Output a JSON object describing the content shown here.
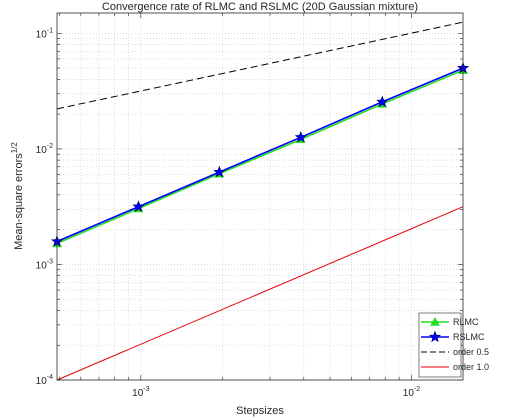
{
  "chart_data": {
    "type": "line",
    "title": "Convergence rate of RLMC and RSLMC (20D Gaussian mixture)",
    "xlabel": "Stepsizes",
    "ylabel_main": "Mean-square errors",
    "ylabel_sup": "1/2",
    "xscale": "log",
    "yscale": "log",
    "xlim": [
      0.00049,
      0.0155
    ],
    "ylim": [
      0.0001,
      0.15
    ],
    "grid": true,
    "legend_position": "bottom-right",
    "x_ticks": [
      {
        "value": 0.001,
        "base": "10",
        "exp": "-3"
      },
      {
        "value": 0.01,
        "base": "10",
        "exp": "-2"
      }
    ],
    "y_ticks": [
      {
        "value": 0.0001,
        "base": "10",
        "exp": "-4"
      },
      {
        "value": 0.001,
        "base": "10",
        "exp": "-3"
      },
      {
        "value": 0.01,
        "base": "10",
        "exp": "-2"
      },
      {
        "value": 0.1,
        "base": "10",
        "exp": "-1"
      }
    ],
    "series": [
      {
        "name": "RLMC",
        "color": "#22dd22",
        "marker": "triangle",
        "x": [
          0.00049,
          0.00098,
          0.00195,
          0.0039,
          0.0078,
          0.0155
        ],
        "y": [
          0.00152,
          0.00305,
          0.0061,
          0.0121,
          0.0245,
          0.048
        ]
      },
      {
        "name": "RSLMC",
        "color": "#0000ff",
        "marker": "star",
        "x": [
          0.00049,
          0.00098,
          0.00195,
          0.0039,
          0.0078,
          0.0155
        ],
        "y": [
          0.00158,
          0.00316,
          0.0063,
          0.0126,
          0.0255,
          0.05
        ]
      },
      {
        "name": "order 0.5",
        "color": "#000000",
        "style": "dashed",
        "x": [
          0.00049,
          0.0155
        ],
        "y": [
          0.0222,
          0.125
        ]
      },
      {
        "name": "order 1.0",
        "color": "#e8000b",
        "style": "solid",
        "x": [
          0.00049,
          0.0155
        ],
        "y": [
          0.0001,
          0.00316
        ]
      }
    ]
  }
}
